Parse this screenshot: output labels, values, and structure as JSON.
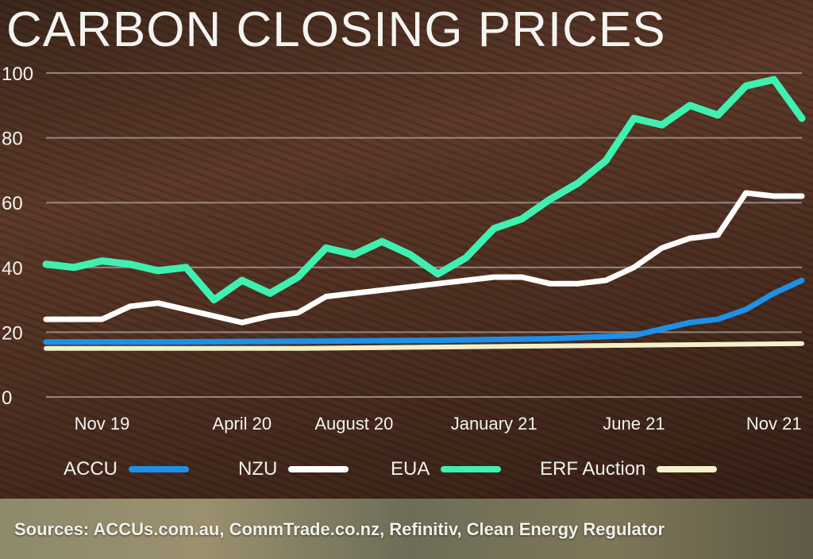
{
  "title": "CARBON CLOSING PRICES",
  "footer": {
    "sources": "Sources: ACCUs.com.au, CommTrade.co.nz, Refinitiv, Clean Energy Regulator"
  },
  "legend": [
    {
      "name": "ACCU",
      "color": "#1e90e8"
    },
    {
      "name": "NZU",
      "color": "#ffffff"
    },
    {
      "name": "EUA",
      "color": "#3ff0b0"
    },
    {
      "name": "ERF Auction",
      "color": "#f4f0c8"
    }
  ],
  "chart_data": {
    "type": "line",
    "title": "CARBON CLOSING PRICES",
    "xlabel": "",
    "ylabel": "",
    "ylim": [
      0,
      100
    ],
    "yticks": [
      0,
      20,
      40,
      60,
      80,
      100
    ],
    "xlim": [
      "2019-09",
      "2021-12"
    ],
    "xticks": [
      {
        "label": "Nov 19",
        "t": "2019-11"
      },
      {
        "label": "April 20",
        "t": "2020-04"
      },
      {
        "label": "August 20",
        "t": "2020-08"
      },
      {
        "label": "January 21",
        "t": "2021-01"
      },
      {
        "label": "June 21",
        "t": "2021-06"
      },
      {
        "label": "Nov 21",
        "t": "2021-11"
      }
    ],
    "grid": true,
    "legend_position": "bottom",
    "series": [
      {
        "name": "ACCU",
        "color": "#1e90e8",
        "x": [
          "2019-09",
          "2020-01",
          "2020-06",
          "2020-11",
          "2021-03",
          "2021-06",
          "2021-07",
          "2021-08",
          "2021-09",
          "2021-10",
          "2021-11",
          "2021-12"
        ],
        "y": [
          17,
          17,
          17.2,
          17.5,
          18,
          19,
          21,
          23,
          24,
          27,
          32,
          36
        ]
      },
      {
        "name": "NZU",
        "color": "#ffffff",
        "x": [
          "2019-09",
          "2019-11",
          "2019-12",
          "2020-01",
          "2020-02",
          "2020-03",
          "2020-04",
          "2020-05",
          "2020-06",
          "2020-07",
          "2020-08",
          "2020-09",
          "2020-10",
          "2020-11",
          "2020-12",
          "2021-01",
          "2021-02",
          "2021-03",
          "2021-04",
          "2021-05",
          "2021-06",
          "2021-07",
          "2021-08",
          "2021-09",
          "2021-10",
          "2021-11",
          "2021-12"
        ],
        "y": [
          24,
          24,
          28,
          29,
          27,
          25,
          23,
          25,
          26,
          31,
          32,
          33,
          34,
          35,
          36,
          37,
          37,
          35,
          35,
          36,
          40,
          46,
          49,
          50,
          63,
          62,
          62
        ]
      },
      {
        "name": "EUA",
        "color": "#3ff0b0",
        "x": [
          "2019-09",
          "2019-10",
          "2019-11",
          "2019-12",
          "2020-01",
          "2020-02",
          "2020-03",
          "2020-04",
          "2020-05",
          "2020-06",
          "2020-07",
          "2020-08",
          "2020-09",
          "2020-10",
          "2020-11",
          "2020-12",
          "2021-01",
          "2021-02",
          "2021-03",
          "2021-04",
          "2021-05",
          "2021-06",
          "2021-07",
          "2021-08",
          "2021-09",
          "2021-10",
          "2021-11",
          "2021-12"
        ],
        "y": [
          41,
          40,
          42,
          41,
          39,
          40,
          30,
          36,
          32,
          37,
          46,
          44,
          48,
          44,
          38,
          43,
          52,
          55,
          61,
          66,
          73,
          86,
          84,
          90,
          87,
          96,
          98,
          86
        ]
      },
      {
        "name": "ERF Auction",
        "color": "#f4f0c8",
        "x": [
          "2019-09",
          "2020-06",
          "2021-12"
        ],
        "y": [
          15,
          15,
          16.5
        ]
      }
    ]
  }
}
